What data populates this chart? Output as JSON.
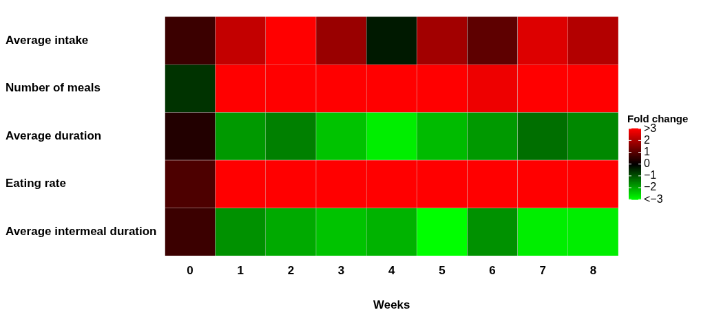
{
  "chart_data": {
    "type": "heatmap",
    "xlabel": "Weeks",
    "clabel": "Fold change",
    "categories": [
      "0",
      "1",
      "2",
      "3",
      "4",
      "5",
      "6",
      "7",
      "8"
    ],
    "y_categories": [
      "Average intake",
      "Number of meals",
      "Average duration",
      "Eating rate",
      "Average intermeal duration"
    ],
    "cells": [
      [
        0.7,
        2.3,
        3,
        1.8,
        -0.3,
        1.9,
        1.1,
        2.6,
        2.1
      ],
      [
        -0.6,
        3,
        3,
        3,
        3,
        3,
        2.8,
        3,
        3
      ],
      [
        0.4,
        -1.8,
        -1.5,
        -2.3,
        -2.8,
        -2.2,
        -1.8,
        -1.3,
        -1.6
      ],
      [
        0.9,
        3,
        3,
        3,
        3,
        3,
        3,
        3,
        3
      ],
      [
        0.7,
        -1.7,
        -2.0,
        -2.3,
        -2.1,
        -3,
        -1.7,
        -2.8,
        -2.8
      ]
    ],
    "clim": [
      -3,
      3
    ],
    "cticks": [
      {
        "value": 3,
        "label": ">3"
      },
      2,
      1,
      0,
      {
        "value": -1,
        "label": "−1"
      },
      {
        "value": -2,
        "label": "−2"
      },
      {
        "value": -3,
        "label": "<−3"
      }
    ]
  }
}
